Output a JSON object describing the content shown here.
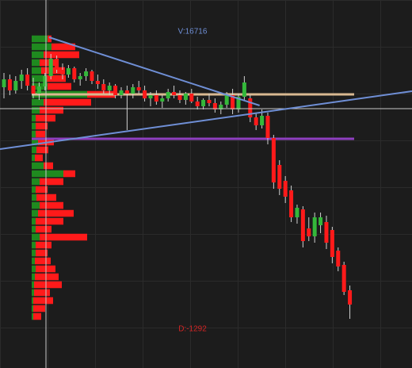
{
  "chart_data": {
    "type": "candlestick",
    "xlim": [
      -0.676,
      69.6
    ],
    "ylim": [
      0,
      464
    ],
    "up_color": "#34b83a",
    "down_color": "#ff1a1a",
    "candles": [
      [
        354,
        372,
        340,
        364
      ],
      [
        364,
        370,
        344,
        350
      ],
      [
        350,
        368,
        346,
        362
      ],
      [
        362,
        376,
        352,
        370
      ],
      [
        370,
        378,
        350,
        356
      ],
      [
        356,
        366,
        340,
        346
      ],
      [
        346,
        360,
        338,
        355
      ],
      [
        355,
        372,
        350,
        368
      ],
      [
        368,
        396,
        364,
        390
      ],
      [
        390,
        394,
        372,
        376
      ],
      [
        376,
        384,
        364,
        370
      ],
      [
        370,
        382,
        366,
        378
      ],
      [
        378,
        380,
        360,
        364
      ],
      [
        364,
        372,
        356,
        368
      ],
      [
        368,
        378,
        362,
        374
      ],
      [
        374,
        376,
        358,
        362
      ],
      [
        362,
        370,
        352,
        358
      ],
      [
        358,
        364,
        346,
        350
      ],
      [
        350,
        360,
        344,
        356
      ],
      [
        356,
        358,
        340,
        344
      ],
      [
        344,
        354,
        340,
        350
      ],
      [
        350,
        356,
        300,
        346
      ],
      [
        346,
        358,
        340,
        354
      ],
      [
        354,
        362,
        346,
        350
      ],
      [
        350,
        356,
        336,
        340
      ],
      [
        340,
        348,
        330,
        344
      ],
      [
        344,
        350,
        332,
        336
      ],
      [
        336,
        344,
        328,
        340
      ],
      [
        340,
        352,
        336,
        348
      ],
      [
        348,
        356,
        340,
        344
      ],
      [
        344,
        350,
        334,
        338
      ],
      [
        338,
        348,
        332,
        346
      ],
      [
        346,
        352,
        334,
        336
      ],
      [
        336,
        342,
        326,
        330
      ],
      [
        330,
        340,
        326,
        338
      ],
      [
        338,
        346,
        330,
        334
      ],
      [
        334,
        340,
        322,
        326
      ],
      [
        326,
        336,
        320,
        332
      ],
      [
        332,
        348,
        328,
        344
      ],
      [
        344,
        352,
        320,
        326
      ],
      [
        326,
        346,
        322,
        342
      ],
      [
        342,
        368,
        338,
        360
      ],
      [
        340,
        344,
        310,
        316
      ],
      [
        316,
        322,
        300,
        306
      ],
      [
        306,
        326,
        302,
        318
      ],
      [
        318,
        322,
        282,
        290
      ],
      [
        290,
        294,
        226,
        234
      ],
      [
        256,
        262,
        218,
        226
      ],
      [
        236,
        242,
        208,
        216
      ],
      [
        224,
        230,
        184,
        190
      ],
      [
        190,
        206,
        182,
        202
      ],
      [
        200,
        204,
        152,
        160
      ],
      [
        176,
        190,
        160,
        166
      ],
      [
        166,
        196,
        158,
        190
      ],
      [
        180,
        196,
        170,
        190
      ],
      [
        184,
        192,
        150,
        158
      ],
      [
        174,
        178,
        132,
        140
      ],
      [
        148,
        152,
        122,
        128
      ],
      [
        130,
        134,
        92,
        96
      ],
      [
        98,
        104,
        62,
        80
      ]
    ],
    "profile": {
      "buy_color": "#1f8a1f",
      "sell_color": "#ff1a1a",
      "prices": [
        415,
        405,
        395,
        385,
        375,
        365,
        355,
        345,
        335,
        325,
        315,
        305,
        295,
        285,
        275,
        265,
        255,
        245,
        235,
        225,
        215,
        205,
        195,
        185,
        175,
        165,
        155,
        145,
        135,
        125,
        115,
        105,
        95,
        85,
        75,
        65
      ],
      "buy": [
        20,
        25,
        15,
        10,
        12,
        18,
        20,
        70,
        15,
        10,
        5,
        5,
        5,
        8,
        6,
        4,
        15,
        40,
        10,
        5,
        6,
        10,
        8,
        5,
        5,
        10,
        5,
        5,
        4,
        5,
        4,
        3,
        3,
        2,
        2,
        2
      ],
      "sell": [
        5,
        30,
        45,
        20,
        30,
        25,
        30,
        35,
        60,
        30,
        25,
        15,
        12,
        20,
        15,
        10,
        12,
        15,
        30,
        15,
        25,
        30,
        45,
        35,
        20,
        60,
        20,
        15,
        20,
        25,
        30,
        35,
        20,
        25,
        15,
        10
      ]
    },
    "levels": [
      {
        "value": 345,
        "color": "#d9b991"
      },
      {
        "value": 289,
        "color": "#8e3fc0"
      }
    ],
    "trendlines": [
      {
        "color": "#6f8fd6",
        "x": [
          7.7,
          43.6
        ],
        "y": [
          417,
          331
        ]
      },
      {
        "color": "#6f8fd6",
        "x": [
          -0.676,
          69.6
        ],
        "y": [
          276,
          349
        ]
      }
    ],
    "annotations": [
      {
        "text": "V:16716",
        "color": "#6f8fd6"
      },
      {
        "text": "D:-1292",
        "color": "#d42424"
      }
    ]
  }
}
